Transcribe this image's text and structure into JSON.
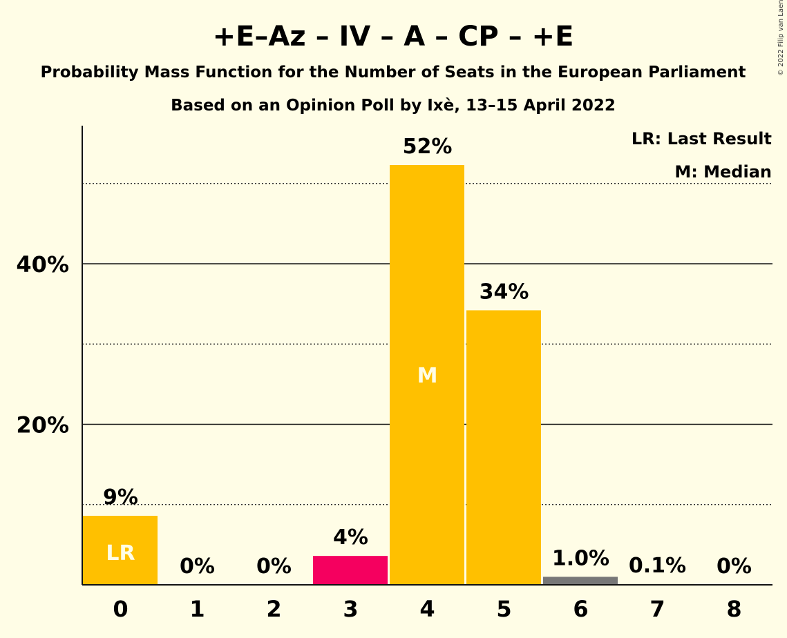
{
  "chart_data": {
    "type": "bar",
    "title": "+E–Az – IV – A – CP – +E",
    "subtitle": "Probability Mass Function for the Number of Seats in the European Parliament",
    "subtitle2": "Based on an Opinion Poll by Ixè, 13–15 April 2022",
    "categories": [
      "0",
      "1",
      "2",
      "3",
      "4",
      "5",
      "6",
      "7",
      "8"
    ],
    "values": [
      8.6,
      0,
      0,
      3.6,
      52.3,
      34.2,
      1.0,
      0.1,
      0
    ],
    "labels": [
      "9%",
      "0%",
      "0%",
      "4%",
      "52%",
      "34%",
      "1.0%",
      "0.1%",
      "0%"
    ],
    "colors": [
      "#FFC000",
      "#FFC000",
      "#FFC000",
      "#F5005F",
      "#FFC000",
      "#FFC000",
      "#777777",
      "#777777",
      "#777777"
    ],
    "inner_labels": {
      "0": "LR",
      "4": "M"
    },
    "ylim": [
      0,
      57
    ],
    "yticks": [
      {
        "value": 20,
        "label": "20%"
      },
      {
        "value": 40,
        "label": "40%"
      }
    ],
    "dotted_gridlines": [
      10,
      30,
      50
    ],
    "legend": [
      "LR: Last Result",
      "M: Median"
    ],
    "legend_position": "top-right",
    "copyright": "© 2022 Filip van Laenen"
  }
}
